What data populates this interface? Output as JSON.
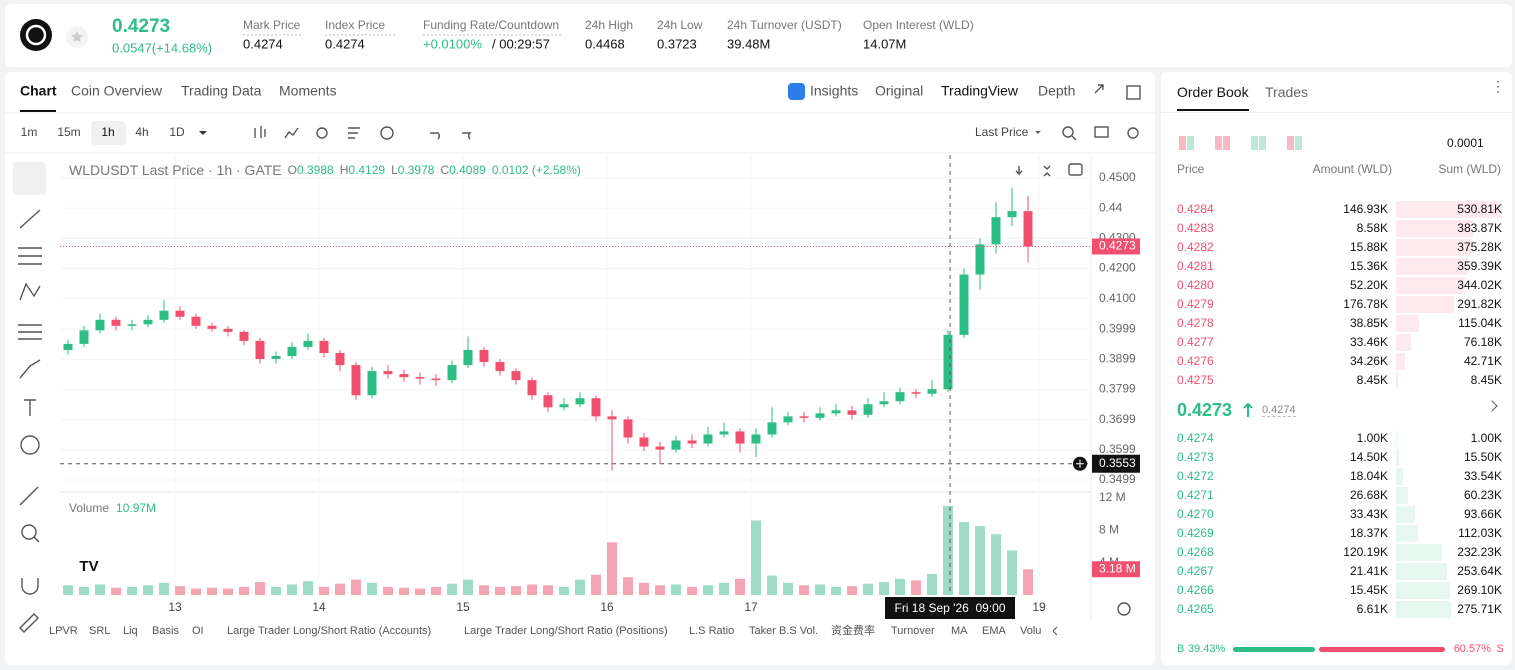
{
  "header": {
    "price": "0.4273",
    "change": "0.0547(+14.68%)",
    "stats": [
      {
        "label": "Mark Price",
        "value": "0.4274"
      },
      {
        "label": "Index Price",
        "value": "0.4274"
      },
      {
        "label": "Funding Rate/Countdown",
        "value": "+0.0100%",
        "value2": "/ 00:29:57"
      },
      {
        "label": "24h High",
        "value": "0.4468"
      },
      {
        "label": "24h Low",
        "value": "0.3723"
      },
      {
        "label": "24h Turnover (USDT)",
        "value": "39.48M"
      },
      {
        "label": "Open Interest (WLD)",
        "value": "14.07M"
      }
    ]
  },
  "tabs": [
    "Chart",
    "Coin Overview",
    "Trading Data",
    "Moments"
  ],
  "views": [
    "Insights",
    "Original",
    "TradingView",
    "Depth"
  ],
  "intervals": [
    "1m",
    "15m",
    "1h",
    "4h",
    "1D"
  ],
  "price_type": "Last Price",
  "chart_data": {
    "type": "candlestick",
    "legend": {
      "title": "WLDUSDT Last Price · 1h · GATE",
      "o_label": "O",
      "o": "0.3988",
      "h_label": "H",
      "h": "0.4129",
      "l_label": "L",
      "l": "0.3978",
      "c_label": "C",
      "c": "0.4089",
      "change": "0.0102 (+2.58%)"
    },
    "open": [
      0.393,
      0.395,
      0.3995,
      0.403,
      0.401,
      0.4015,
      0.403,
      0.406,
      0.404,
      0.401,
      0.4,
      0.399,
      0.396,
      0.39,
      0.391,
      0.394,
      0.396,
      0.392,
      0.388,
      0.378,
      0.386,
      0.385,
      0.384,
      0.3835,
      0.383,
      0.388,
      0.393,
      0.389,
      0.386,
      0.383,
      0.378,
      0.374,
      0.375,
      0.377,
      0.371,
      0.37,
      0.364,
      0.361,
      0.36,
      0.363,
      0.362,
      0.365,
      0.366,
      0.362,
      0.365,
      0.369,
      0.371,
      0.3705,
      0.372,
      0.373,
      0.3715,
      0.375,
      0.376,
      0.379,
      0.3785,
      0.38,
      0.398,
      0.418,
      0.428,
      0.437,
      0.439
    ],
    "high": [
      0.3965,
      0.401,
      0.405,
      0.404,
      0.403,
      0.4045,
      0.4095,
      0.4075,
      0.405,
      0.402,
      0.401,
      0.3995,
      0.397,
      0.3925,
      0.3955,
      0.3985,
      0.397,
      0.393,
      0.389,
      0.3875,
      0.388,
      0.3865,
      0.3855,
      0.385,
      0.3895,
      0.3975,
      0.394,
      0.39,
      0.387,
      0.384,
      0.379,
      0.377,
      0.379,
      0.378,
      0.373,
      0.371,
      0.3655,
      0.3625,
      0.3645,
      0.365,
      0.3675,
      0.369,
      0.367,
      0.367,
      0.374,
      0.3725,
      0.3725,
      0.374,
      0.375,
      0.3745,
      0.377,
      0.379,
      0.3805,
      0.38,
      0.383,
      0.3995,
      0.42,
      0.43,
      0.442,
      0.4468,
      0.444
    ],
    "low": [
      0.3915,
      0.394,
      0.3985,
      0.3995,
      0.3995,
      0.4005,
      0.402,
      0.403,
      0.4,
      0.399,
      0.3975,
      0.3945,
      0.3885,
      0.3885,
      0.39,
      0.393,
      0.3905,
      0.386,
      0.3765,
      0.377,
      0.3835,
      0.3825,
      0.3815,
      0.381,
      0.382,
      0.387,
      0.3875,
      0.3845,
      0.3815,
      0.3765,
      0.3725,
      0.373,
      0.374,
      0.3695,
      0.353,
      0.362,
      0.3595,
      0.3553,
      0.359,
      0.3605,
      0.361,
      0.364,
      0.359,
      0.3575,
      0.364,
      0.368,
      0.369,
      0.3695,
      0.371,
      0.37,
      0.3705,
      0.374,
      0.375,
      0.377,
      0.3775,
      0.379,
      0.397,
      0.413,
      0.425,
      0.434,
      0.422
    ],
    "close": [
      0.395,
      0.3995,
      0.403,
      0.401,
      0.4015,
      0.403,
      0.406,
      0.404,
      0.401,
      0.4,
      0.399,
      0.396,
      0.39,
      0.391,
      0.394,
      0.396,
      0.392,
      0.388,
      0.378,
      0.386,
      0.385,
      0.384,
      0.3835,
      0.383,
      0.388,
      0.393,
      0.389,
      0.386,
      0.383,
      0.378,
      0.374,
      0.375,
      0.377,
      0.371,
      0.37,
      0.364,
      0.361,
      0.36,
      0.363,
      0.362,
      0.365,
      0.366,
      0.362,
      0.365,
      0.369,
      0.371,
      0.3705,
      0.372,
      0.373,
      0.3715,
      0.375,
      0.376,
      0.379,
      0.3785,
      0.38,
      0.398,
      0.418,
      0.428,
      0.437,
      0.439,
      0.4273
    ],
    "volume": [
      1.2,
      1.0,
      1.3,
      0.9,
      1.0,
      1.2,
      1.5,
      1.1,
      0.8,
      0.9,
      0.8,
      1.0,
      1.6,
      1.0,
      1.3,
      1.7,
      1.0,
      1.4,
      1.9,
      1.5,
      1.0,
      0.9,
      0.8,
      1.0,
      1.4,
      1.9,
      1.2,
      1.0,
      1.1,
      1.3,
      1.2,
      1.0,
      1.9,
      2.5,
      6.5,
      2.2,
      1.5,
      1.2,
      1.3,
      1.0,
      1.2,
      1.5,
      2.0,
      9.2,
      2.4,
      1.5,
      1.2,
      1.3,
      1.0,
      1.1,
      1.4,
      1.6,
      2.0,
      1.8,
      2.6,
      11.0,
      9.0,
      8.5,
      7.5,
      5.5,
      3.18
    ],
    "volume_title": "Volume",
    "volume_total": "10.97M",
    "xlim": [
      -0.5,
      63.875
    ],
    "xticks": [
      {
        "value": 6.69,
        "label": "13"
      },
      {
        "value": 15.69,
        "label": "14"
      },
      {
        "value": 24.69,
        "label": "15"
      },
      {
        "value": 33.69,
        "label": "16"
      },
      {
        "value": 42.69,
        "label": "17"
      },
      {
        "value": 60.69,
        "label": "19"
      }
    ],
    "ylim": [
      0.3466,
      0.4576
    ],
    "yticks": [
      {
        "value": 0.45,
        "label": "0.4500"
      },
      0.44,
      {
        "value": 0.43,
        "label": "0.4300"
      },
      {
        "value": 0.42,
        "label": "0.4200"
      },
      {
        "value": 0.41,
        "label": "0.4100"
      },
      0.3999,
      0.3899,
      0.3799,
      0.3699,
      0.3599,
      0.3499
    ],
    "y2lim": [
      0,
      12.6
    ],
    "y2ticks": [
      {
        "value": 12,
        "label": "12 M"
      },
      {
        "value": 8,
        "label": "8 M"
      },
      {
        "value": 4,
        "label": "4 M"
      }
    ],
    "last_price": 0.4273,
    "crosshair_price": 0.3553,
    "crosshair_x": 55.125,
    "crosshair_time": "Fri 18 Sep '26  09:00",
    "volume_last": {
      "value": 3.18,
      "label": "3.18 M"
    },
    "up_color": "#2ebd85",
    "down_color": "#f0506e",
    "up_volume_color": "#9edcc5",
    "down_volume_color": "#f4a5b3"
  },
  "indicators": [
    "LPVR",
    "SRL",
    "Liq",
    "Basis",
    "OI",
    "Large Trader Long/Short Ratio (Accounts)",
    "Large Trader Long/Short Ratio (Positions)",
    "L.S Ratio",
    "Taker B.S Vol.",
    "资金费率",
    "Turnover",
    "MA",
    "EMA",
    "Volu"
  ],
  "order_book": {
    "tabs": [
      "Order Book",
      "Trades"
    ],
    "precision": "0.0001",
    "headers": [
      "Price",
      "Amount (WLD)",
      "Sum (WLD)"
    ],
    "asks": [
      {
        "price": "0.4284",
        "amount": "146.93K",
        "sum": {
          "value": 530.81,
          "label": "530.81K"
        }
      },
      {
        "price": "0.4283",
        "amount": "8.58K",
        "sum": {
          "value": 383.87,
          "label": "383.87K"
        }
      },
      {
        "price": "0.4282",
        "amount": "15.88K",
        "sum": {
          "value": 375.28,
          "label": "375.28K"
        }
      },
      {
        "price": "0.4281",
        "amount": "15.36K",
        "sum": {
          "value": 359.39,
          "label": "359.39K"
        }
      },
      {
        "price": "0.4280",
        "amount": "52.20K",
        "sum": {
          "value": 344.02,
          "label": "344.02K"
        }
      },
      {
        "price": "0.4279",
        "amount": "176.78K",
        "sum": {
          "value": 291.82,
          "label": "291.82K"
        }
      },
      {
        "price": "0.4278",
        "amount": "38.85K",
        "sum": {
          "value": 115.04,
          "label": "115.04K"
        }
      },
      {
        "price": "0.4277",
        "amount": "33.46K",
        "sum": {
          "value": 76.18,
          "label": "76.18K"
        }
      },
      {
        "price": "0.4276",
        "amount": "34.26K",
        "sum": {
          "value": 42.71,
          "label": "42.71K"
        }
      },
      {
        "price": "0.4275",
        "amount": "8.45K",
        "sum": {
          "value": 8.45,
          "label": "8.45K"
        }
      }
    ],
    "mid": "0.4273",
    "mark": "0.4274",
    "bids": [
      {
        "price": "0.4274",
        "amount": "1.00K",
        "sum": {
          "value": 1,
          "label": "1.00K"
        }
      },
      {
        "price": "0.4273",
        "amount": "14.50K",
        "sum": {
          "value": 15.5,
          "label": "15.50K"
        }
      },
      {
        "price": "0.4272",
        "amount": "18.04K",
        "sum": {
          "value": 33.54,
          "label": "33.54K"
        }
      },
      {
        "price": "0.4271",
        "amount": "26.68K",
        "sum": {
          "value": 60.23,
          "label": "60.23K"
        }
      },
      {
        "price": "0.4270",
        "amount": "33.43K",
        "sum": {
          "value": 93.66,
          "label": "93.66K"
        }
      },
      {
        "price": "0.4269",
        "amount": "18.37K",
        "sum": {
          "value": 112.03,
          "label": "112.03K"
        }
      },
      {
        "price": "0.4268",
        "amount": "120.19K",
        "sum": {
          "value": 232.23,
          "label": "232.23K"
        }
      },
      {
        "price": "0.4267",
        "amount": "21.41K",
        "sum": {
          "value": 253.64,
          "label": "253.64K"
        }
      },
      {
        "price": "0.4266",
        "amount": "15.45K",
        "sum": {
          "value": 269.1,
          "label": "269.10K"
        }
      },
      {
        "price": "0.4265",
        "amount": "6.61K",
        "sum": {
          "value": 275.71,
          "label": "275.71K"
        }
      }
    ],
    "buy_letter": "B",
    "buy": {
      "value": 39.43,
      "label": "39.43%"
    },
    "sell": {
      "value": 60.57,
      "label": "60.57%"
    },
    "sell_letter": "S"
  }
}
